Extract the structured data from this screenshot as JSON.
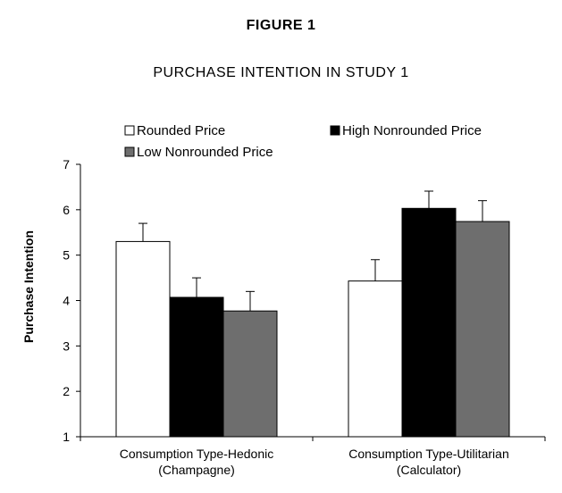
{
  "figure": {
    "title": "FIGURE 1",
    "subtitle": "PURCHASE INTENTION IN STUDY 1"
  },
  "chart_data": {
    "type": "bar",
    "title": "",
    "xlabel": "",
    "ylabel": "Purchase Intention",
    "ylim": [
      1,
      7
    ],
    "yticks": [
      "1",
      "2",
      "3",
      "4",
      "5",
      "6",
      "7"
    ],
    "categories": [
      [
        "Consumption Type-Hedonic",
        "(Champagne)"
      ],
      [
        "Consumption Type-Utilitarian",
        "(Calculator)"
      ]
    ],
    "series": [
      {
        "name": "Rounded Price",
        "values": [
          5.3,
          4.43
        ],
        "errors": [
          0.4,
          0.47
        ],
        "color": "#ffffff"
      },
      {
        "name": "High Nonrounded Price",
        "values": [
          4.07,
          6.03
        ],
        "errors": [
          0.43,
          0.38
        ],
        "color": "#000000"
      },
      {
        "name": "Low Nonrounded Price",
        "values": [
          3.77,
          5.74
        ],
        "errors": [
          0.43,
          0.46
        ],
        "color": "#6e6e6e"
      }
    ],
    "legend_position": "top",
    "grid": false
  }
}
